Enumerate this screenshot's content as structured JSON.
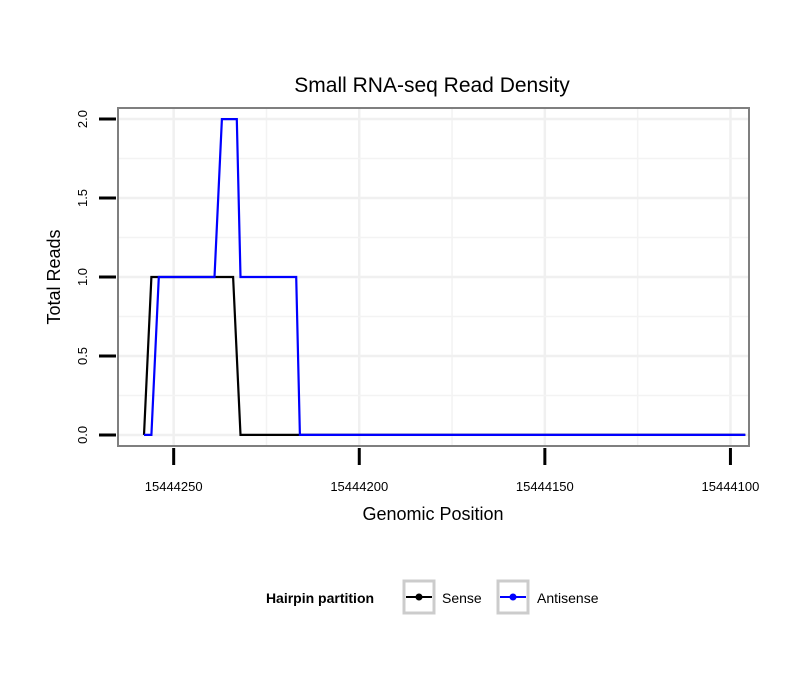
{
  "chart_data": {
    "type": "line",
    "title": "Small RNA-seq Read Density",
    "xlabel": "Genomic Position",
    "ylabel": "Total Reads",
    "x_reversed": true,
    "xlim": [
      15444265,
      15444095
    ],
    "ylim": [
      -0.07,
      2.07
    ],
    "x_ticks": [
      15444250,
      15444200,
      15444150,
      15444100
    ],
    "x_tick_labels": [
      "15444250",
      "15444200",
      "15444150",
      "15444100"
    ],
    "y_ticks": [
      0.0,
      0.5,
      1.0,
      1.5,
      2.0
    ],
    "y_tick_labels": [
      "0.0",
      "0.5",
      "1.0",
      "1.5",
      "2.0"
    ],
    "grid": true,
    "legend": {
      "title": "Hairpin partition",
      "position": "bottom"
    },
    "series": [
      {
        "name": "Sense",
        "color": "#000000",
        "x": [
          15444258,
          15444256,
          15444234,
          15444232,
          15444096
        ],
        "y": [
          0,
          1,
          1,
          0,
          0
        ]
      },
      {
        "name": "Antisense",
        "color": "#0000ff",
        "x": [
          15444258,
          15444256,
          15444254,
          15444239,
          15444237,
          15444233,
          15444232,
          15444217,
          15444216,
          15444096
        ],
        "y": [
          0,
          0,
          1,
          1,
          2,
          2,
          1,
          1,
          0,
          0
        ]
      }
    ]
  }
}
